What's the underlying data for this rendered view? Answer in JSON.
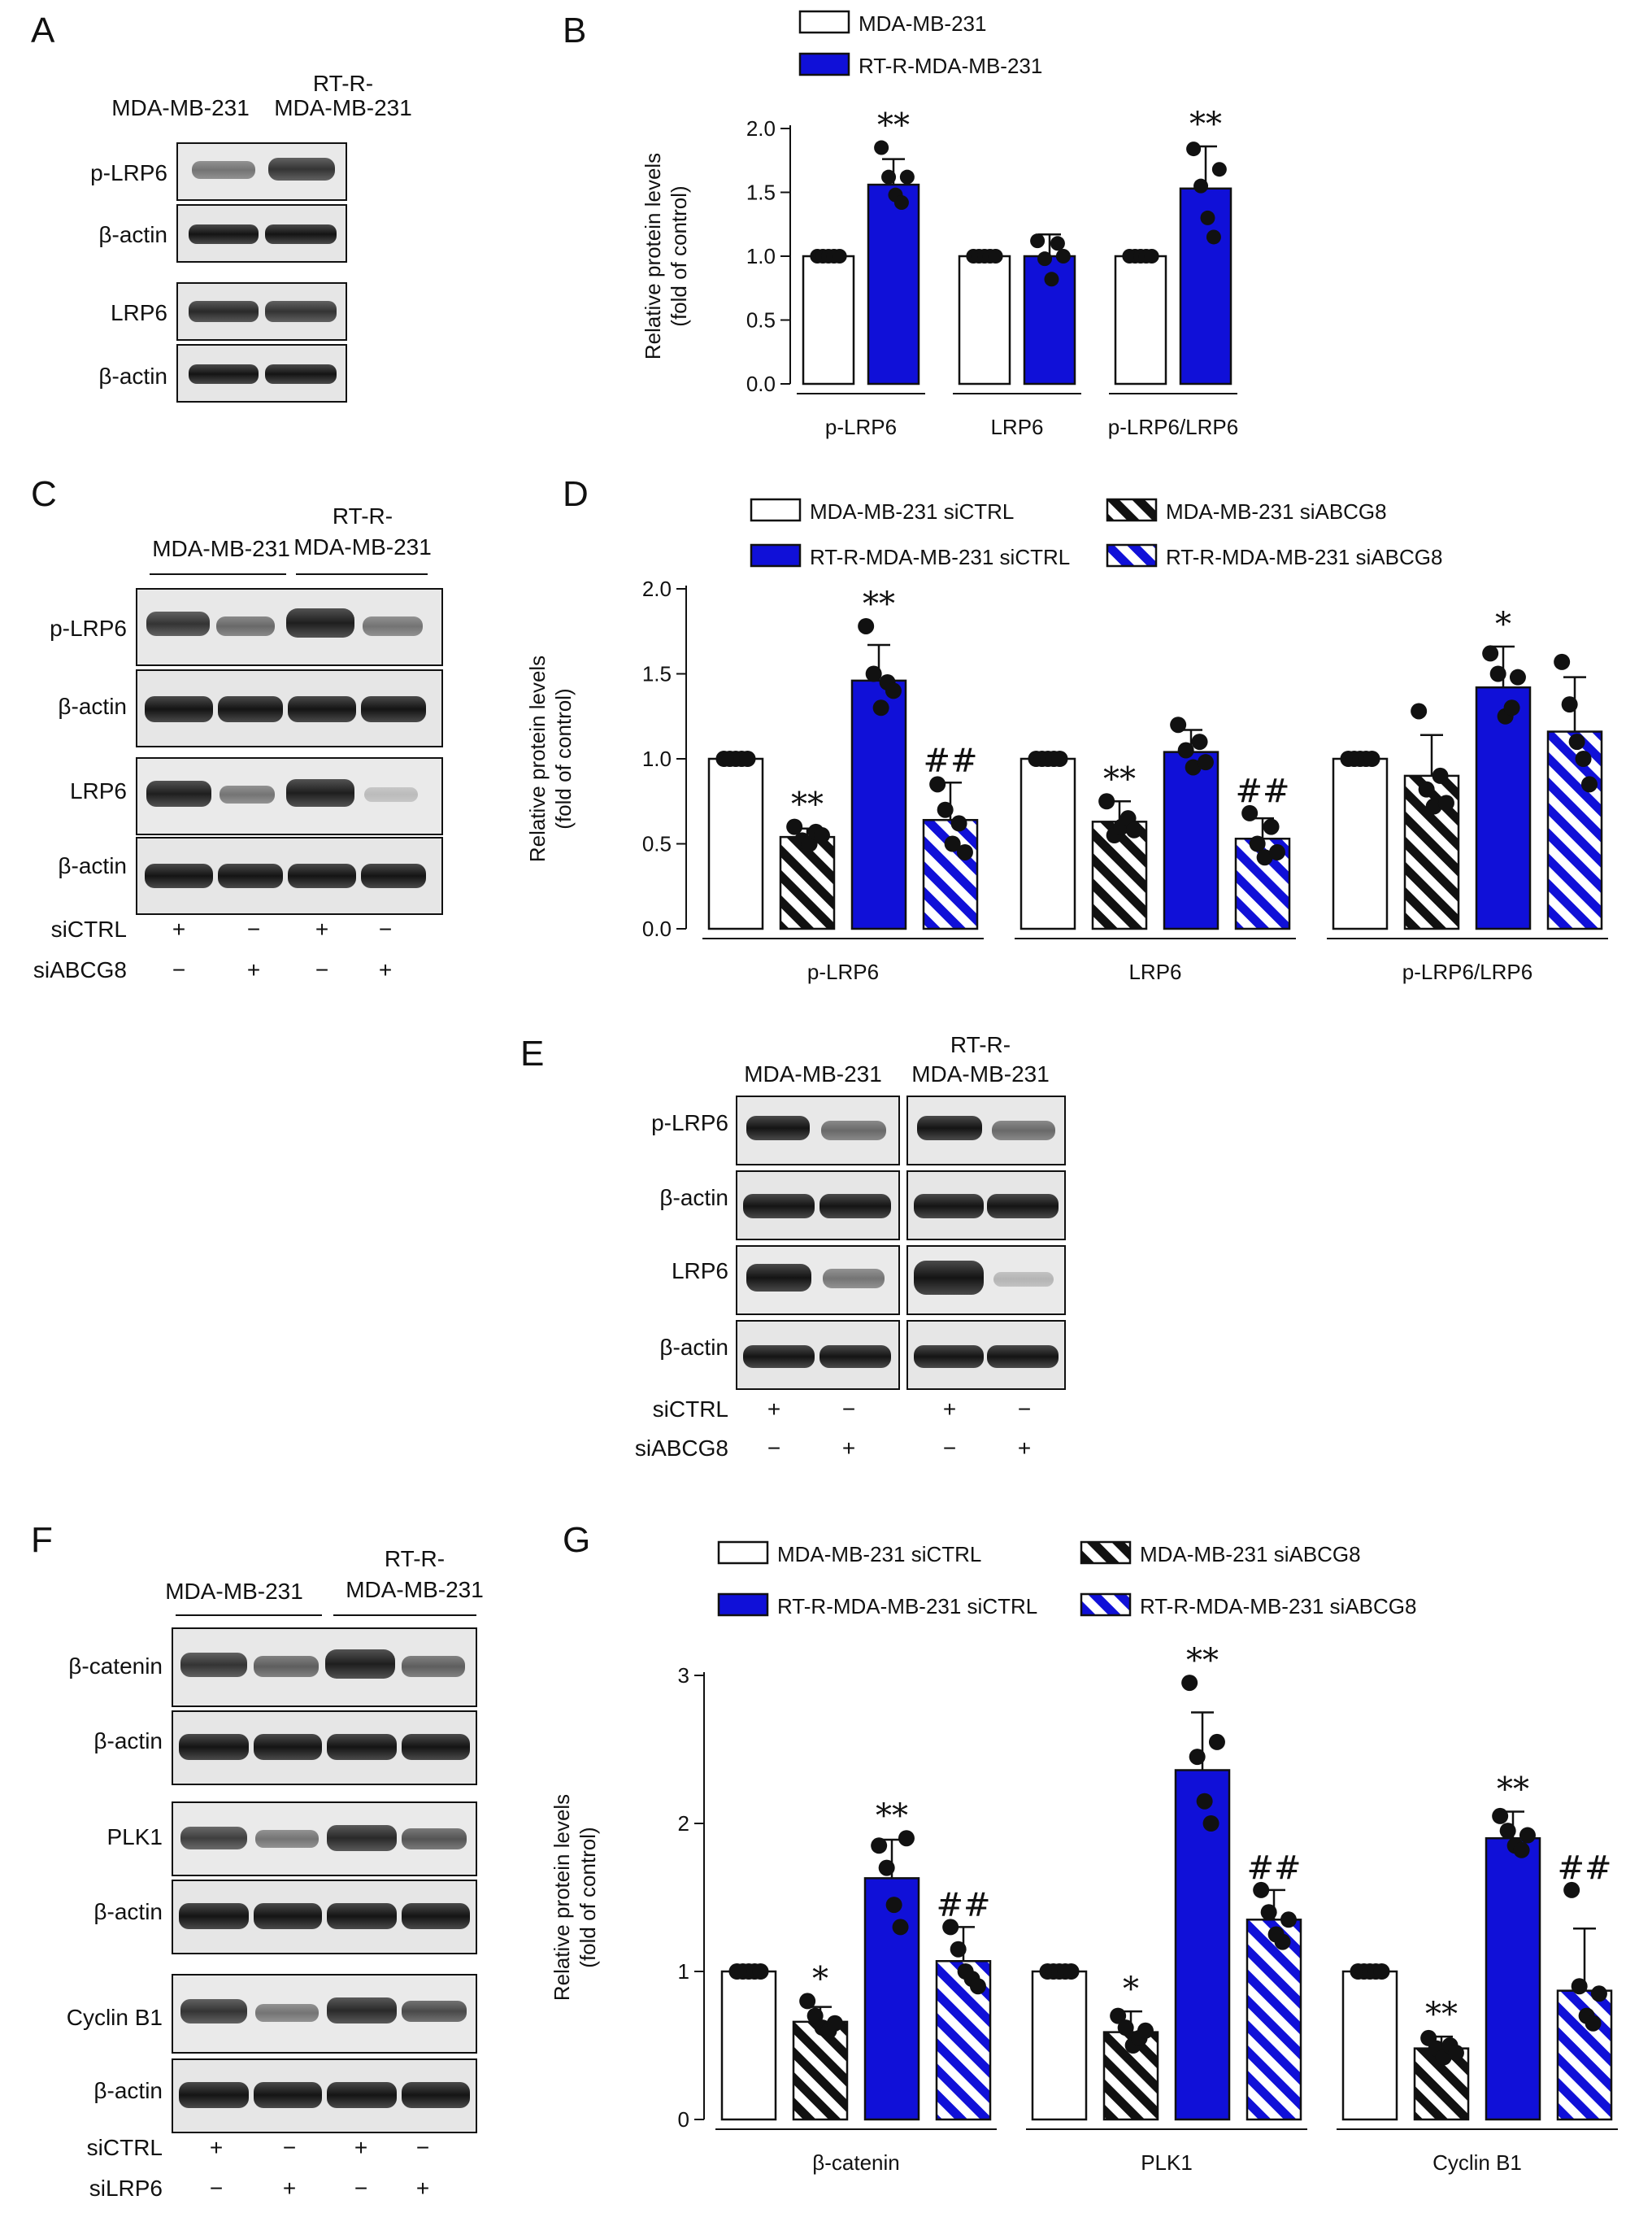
{
  "colors": {
    "white": "#ffffff",
    "blue": "#1010d8",
    "black": "#111111"
  },
  "panels": {
    "A": {
      "letter": "A",
      "col1": "MDA-MB-231",
      "col2a": "RT-R-",
      "col2b": "MDA-MB-231",
      "rows": [
        "p-LRP6",
        "β-actin",
        "LRP6",
        "β-actin"
      ]
    },
    "C": {
      "letter": "C",
      "group1": "MDA-MB-231",
      "group2a": "RT-R-",
      "group2b": "MDA-MB-231",
      "rows": [
        "p-LRP6",
        "β-actin",
        "LRP6",
        "β-actin"
      ],
      "cond1": "siCTRL",
      "cond2": "siABCG8",
      "cond1_signs": [
        "+",
        "−",
        "+",
        "−"
      ],
      "cond2_signs": [
        "−",
        "+",
        "−",
        "+"
      ]
    },
    "E": {
      "letter": "E",
      "group1": "MDA-MB-231",
      "group2a": "RT-R-",
      "group2b": "MDA-MB-231",
      "rows": [
        "p-LRP6",
        "β-actin",
        "LRP6",
        "β-actin"
      ],
      "cond1": "siCTRL",
      "cond2": "siABCG8",
      "cond1_signs": [
        "+",
        "−",
        "+",
        "−"
      ],
      "cond2_signs": [
        "−",
        "+",
        "−",
        "+"
      ]
    },
    "F": {
      "letter": "F",
      "group1": "MDA-MB-231",
      "group2a": "RT-R-",
      "group2b": "MDA-MB-231",
      "rows": [
        "β-catenin",
        "β-actin",
        "PLK1",
        "β-actin",
        "Cyclin B1",
        "β-actin"
      ],
      "cond1": "siCTRL",
      "cond2": "siLRP6",
      "cond1_signs": [
        "+",
        "−",
        "+",
        "−"
      ],
      "cond2_signs": [
        "−",
        "+",
        "−",
        "+"
      ]
    }
  },
  "chart_data": [
    {
      "panel": "B",
      "type": "bar",
      "ylabel": "Relative protein levels",
      "ylabel2": "(fold of control)",
      "ylim": [
        0,
        2.0
      ],
      "yticks": [
        "0.0",
        "0.5",
        "1.0",
        "1.5",
        "2.0"
      ],
      "categories": [
        "p-LRP6",
        "LRP6",
        "p-LRP6/LRP6"
      ],
      "legend": "top",
      "series": [
        {
          "name": "MDA-MB-231",
          "style": "white",
          "values": [
            1.0,
            1.0,
            1.0
          ],
          "errors": [
            0,
            0,
            0
          ],
          "points": [
            [
              1,
              1,
              1,
              1,
              1
            ],
            [
              1,
              1,
              1,
              1,
              1
            ],
            [
              1,
              1,
              1,
              1,
              1
            ]
          ],
          "marks": [
            "",
            "",
            ""
          ]
        },
        {
          "name": "RT-R-MDA-MB-231",
          "style": "blue",
          "values": [
            1.56,
            1.0,
            1.53
          ],
          "errors": [
            0.2,
            0.17,
            0.33
          ],
          "points": [
            [
              1.85,
              1.62,
              1.48,
              1.42,
              1.62
            ],
            [
              1.12,
              0.98,
              0.82,
              1.1,
              1.0
            ],
            [
              1.84,
              1.55,
              1.3,
              1.15,
              1.68
            ]
          ],
          "marks": [
            "**",
            "",
            "**"
          ]
        }
      ]
    },
    {
      "panel": "D",
      "type": "bar",
      "ylabel": "Relative protein levels",
      "ylabel2": "(fold of control)",
      "ylim": [
        0,
        2.0
      ],
      "yticks": [
        "0.0",
        "0.5",
        "1.0",
        "1.5",
        "2.0"
      ],
      "categories": [
        "p-LRP6",
        "LRP6",
        "p-LRP6/LRP6"
      ],
      "legend": "top",
      "series": [
        {
          "name": "MDA-MB-231 siCTRL",
          "style": "white",
          "values": [
            1.0,
            1.0,
            1.0
          ],
          "errors": [
            0,
            0,
            0
          ],
          "points": [
            [
              1,
              1,
              1,
              1,
              1
            ],
            [
              1,
              1,
              1,
              1,
              1
            ],
            [
              1,
              1,
              1,
              1,
              1
            ]
          ],
          "marks": [
            "",
            "",
            ""
          ]
        },
        {
          "name": "MDA-MB-231 siABCG8",
          "style": "black-hatch",
          "values": [
            0.54,
            0.63,
            0.9
          ],
          "errors": [
            0.05,
            0.12,
            0.24
          ],
          "points": [
            [
              0.6,
              0.52,
              0.5,
              0.57,
              0.55
            ],
            [
              0.75,
              0.55,
              0.6,
              0.65,
              0.58
            ],
            [
              1.28,
              0.82,
              0.72,
              0.9,
              0.74
            ]
          ],
          "marks": [
            "**",
            "**",
            ""
          ]
        },
        {
          "name": "RT-R-MDA-MB-231 siCTRL",
          "style": "blue",
          "values": [
            1.46,
            1.04,
            1.42
          ],
          "errors": [
            0.21,
            0.13,
            0.24
          ],
          "points": [
            [
              1.78,
              1.5,
              1.3,
              1.45,
              1.4
            ],
            [
              1.2,
              1.05,
              0.95,
              1.1,
              0.98
            ],
            [
              1.62,
              1.5,
              1.25,
              1.3,
              1.48
            ]
          ],
          "marks": [
            "**",
            "",
            "*"
          ]
        },
        {
          "name": "RT-R-MDA-MB-231 siABCG8",
          "style": "blue-hatch",
          "values": [
            0.64,
            0.53,
            1.16
          ],
          "errors": [
            0.22,
            0.12,
            0.32
          ],
          "points": [
            [
              0.85,
              0.7,
              0.5,
              0.62,
              0.45
            ],
            [
              0.68,
              0.5,
              0.42,
              0.6,
              0.45
            ],
            [
              1.57,
              1.32,
              1.1,
              1.0,
              0.85
            ]
          ],
          "marks": [
            "##",
            "##",
            ""
          ]
        }
      ]
    },
    {
      "panel": "G",
      "type": "bar",
      "ylabel": "Relative protein levels",
      "ylabel2": "(fold of control)",
      "ylim": [
        0,
        3
      ],
      "yticks": [
        "0",
        "1",
        "2",
        "3"
      ],
      "categories": [
        "β-catenin",
        "PLK1",
        "Cyclin B1"
      ],
      "legend": "top",
      "series": [
        {
          "name": "MDA-MB-231 siCTRL",
          "style": "white",
          "values": [
            1.0,
            1.0,
            1.0
          ],
          "errors": [
            0,
            0,
            0
          ],
          "points": [
            [
              1,
              1,
              1,
              1,
              1
            ],
            [
              1,
              1,
              1,
              1,
              1
            ],
            [
              1,
              1,
              1,
              1,
              1
            ]
          ],
          "marks": [
            "",
            "",
            ""
          ]
        },
        {
          "name": "MDA-MB-231 siABCG8",
          "style": "black-hatch",
          "values": [
            0.66,
            0.59,
            0.48
          ],
          "errors": [
            0.1,
            0.14,
            0.08
          ],
          "points": [
            [
              0.8,
              0.7,
              0.62,
              0.6,
              0.65
            ],
            [
              0.7,
              0.62,
              0.5,
              0.55,
              0.6
            ],
            [
              0.55,
              0.48,
              0.42,
              0.5,
              0.45
            ]
          ],
          "marks": [
            "*",
            "*",
            "**"
          ]
        },
        {
          "name": "RT-R-MDA-MB-231 siCTRL",
          "style": "blue",
          "values": [
            1.63,
            2.36,
            1.9
          ],
          "errors": [
            0.26,
            0.39,
            0.18
          ],
          "points": [
            [
              1.85,
              1.7,
              1.45,
              1.3,
              1.9
            ],
            [
              2.95,
              2.45,
              2.15,
              2.0,
              2.55
            ],
            [
              2.05,
              1.95,
              1.85,
              1.82,
              1.92
            ]
          ],
          "marks": [
            "**",
            "**",
            "**"
          ]
        },
        {
          "name": "RT-R-MDA-MB-231 siABCG8",
          "style": "blue-hatch",
          "values": [
            1.07,
            1.35,
            0.87
          ],
          "errors": [
            0.23,
            0.2,
            0.42
          ],
          "points": [
            [
              1.3,
              1.15,
              1.0,
              0.95,
              0.9
            ],
            [
              1.55,
              1.4,
              1.25,
              1.2,
              1.35
            ],
            [
              1.55,
              0.9,
              0.7,
              0.65,
              0.85
            ]
          ],
          "marks": [
            "##",
            "##",
            "##"
          ]
        }
      ]
    }
  ]
}
